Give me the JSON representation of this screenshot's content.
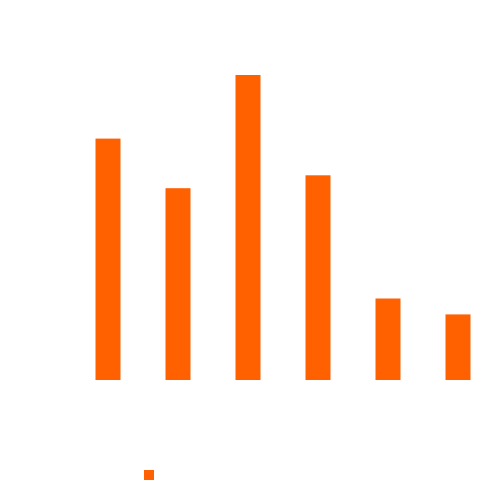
{
  "chart_data": {
    "type": "bar",
    "categories": [
      "",
      "",
      "",
      "",
      "",
      ""
    ],
    "series": [
      {
        "values": [
          243,
          193,
          307,
          206,
          82,
          66
        ],
        "color": "#ff6000"
      }
    ],
    "ylim": [
      0,
      310
    ],
    "grid": false,
    "legend": {
      "position": "bottom-center",
      "entries": [
        {
          "label": "",
          "color": "#ff6000"
        }
      ]
    }
  }
}
